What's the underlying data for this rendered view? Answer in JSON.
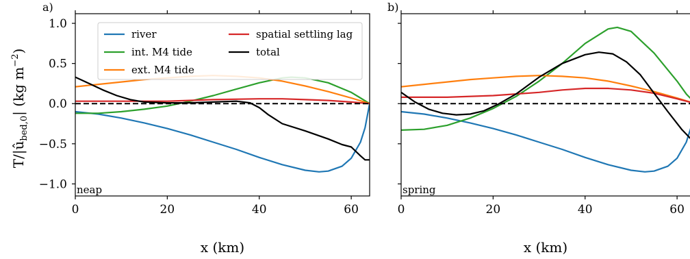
{
  "figure": {
    "ylabel": "T/|û",
    "ylabel_sub": "bed,0",
    "ylabel_unit": "| (kg m",
    "ylabel_sup": "−2",
    "ylabel_close": ")"
  },
  "legend": [
    {
      "label": "river",
      "color": "#1f77b4"
    },
    {
      "label": "int. M4 tide",
      "color": "#2ca02c"
    },
    {
      "label": "ext. M4 tide",
      "color": "#ff7f0e"
    },
    {
      "label": "spatial settling lag",
      "color": "#d62728"
    },
    {
      "label": "total",
      "color": "#000000"
    }
  ],
  "chart_data": [
    {
      "type": "line",
      "panel_label": "a)",
      "corner_label": "neap",
      "xlabel": "x (km)",
      "xlim": [
        0,
        64
      ],
      "ylim": [
        -1.15,
        1.12
      ],
      "xticks": [
        "0",
        "20",
        "40",
        "60"
      ],
      "yticks": [
        "1.0",
        "0.5",
        "0.0",
        "−0.5",
        "−1.0"
      ],
      "series": [
        {
          "name": "river",
          "color": "#1f77b4",
          "x": [
            0,
            5,
            10,
            15,
            20,
            25,
            30,
            35,
            40,
            45,
            50,
            53,
            55,
            58,
            60,
            62,
            63,
            64
          ],
          "y": [
            -0.1,
            -0.13,
            -0.18,
            -0.24,
            -0.31,
            -0.39,
            -0.48,
            -0.57,
            -0.67,
            -0.76,
            -0.83,
            -0.85,
            -0.84,
            -0.78,
            -0.68,
            -0.48,
            -0.3,
            0.0
          ]
        },
        {
          "name": "int. M4 tide",
          "color": "#2ca02c",
          "x": [
            0,
            5,
            10,
            15,
            20,
            25,
            30,
            35,
            40,
            45,
            47,
            50,
            55,
            60,
            62,
            64
          ],
          "y": [
            -0.12,
            -0.12,
            -0.1,
            -0.07,
            -0.03,
            0.03,
            0.1,
            0.18,
            0.26,
            0.32,
            0.33,
            0.32,
            0.26,
            0.14,
            0.07,
            0.0
          ]
        },
        {
          "name": "ext. M4 tide",
          "color": "#ff7f0e",
          "x": [
            0,
            5,
            10,
            15,
            20,
            25,
            30,
            35,
            40,
            45,
            50,
            55,
            60,
            64
          ],
          "y": [
            0.21,
            0.24,
            0.27,
            0.3,
            0.32,
            0.34,
            0.35,
            0.34,
            0.32,
            0.28,
            0.22,
            0.15,
            0.07,
            0.0
          ]
        },
        {
          "name": "spatial settling lag",
          "color": "#d62728",
          "x": [
            0,
            10,
            20,
            30,
            40,
            45,
            50,
            55,
            60,
            64
          ],
          "y": [
            0.03,
            0.03,
            0.03,
            0.05,
            0.06,
            0.06,
            0.05,
            0.04,
            0.02,
            0.0
          ]
        },
        {
          "name": "total",
          "color": "#000000",
          "x": [
            0,
            3,
            6,
            9,
            12,
            15,
            20,
            25,
            30,
            35,
            38,
            40,
            42,
            45,
            50,
            55,
            58,
            60,
            62,
            63,
            64
          ],
          "y": [
            0.33,
            0.25,
            0.17,
            0.1,
            0.05,
            0.02,
            0.01,
            0.01,
            0.02,
            0.03,
            0.01,
            -0.05,
            -0.14,
            -0.25,
            -0.34,
            -0.44,
            -0.51,
            -0.54,
            -0.65,
            -0.7,
            -0.7
          ]
        },
        {
          "name": "zero line",
          "color": "#000000",
          "dashed": true,
          "x": [
            0,
            64
          ],
          "y": [
            0,
            0
          ]
        }
      ]
    },
    {
      "type": "line",
      "panel_label": "b)",
      "corner_label": "spring",
      "xlabel": "x (km)",
      "xlim": [
        0,
        64
      ],
      "ylim": [
        -1.15,
        1.12
      ],
      "xticks": [
        "0",
        "20",
        "40",
        "60"
      ],
      "yticks": [],
      "series": [
        {
          "name": "river",
          "color": "#1f77b4",
          "x": [
            0,
            5,
            10,
            15,
            20,
            25,
            30,
            35,
            40,
            45,
            50,
            53,
            55,
            58,
            60,
            62,
            63,
            64
          ],
          "y": [
            -0.1,
            -0.13,
            -0.18,
            -0.24,
            -0.31,
            -0.39,
            -0.48,
            -0.57,
            -0.67,
            -0.76,
            -0.83,
            -0.85,
            -0.84,
            -0.78,
            -0.68,
            -0.48,
            -0.3,
            0.0
          ]
        },
        {
          "name": "int. M4 tide",
          "color": "#2ca02c",
          "x": [
            0,
            5,
            10,
            15,
            20,
            25,
            30,
            35,
            40,
            45,
            47,
            50,
            55,
            60,
            62,
            64
          ],
          "y": [
            -0.33,
            -0.32,
            -0.27,
            -0.18,
            -0.06,
            0.09,
            0.28,
            0.5,
            0.75,
            0.93,
            0.95,
            0.9,
            0.63,
            0.28,
            0.12,
            0.0
          ]
        },
        {
          "name": "ext. M4 tide",
          "color": "#ff7f0e",
          "x": [
            0,
            5,
            10,
            15,
            20,
            25,
            30,
            35,
            40,
            45,
            50,
            55,
            60,
            64
          ],
          "y": [
            0.21,
            0.24,
            0.27,
            0.3,
            0.32,
            0.34,
            0.35,
            0.34,
            0.32,
            0.28,
            0.22,
            0.15,
            0.07,
            0.0
          ]
        },
        {
          "name": "spatial settling lag",
          "color": "#d62728",
          "x": [
            0,
            10,
            20,
            30,
            35,
            40,
            45,
            50,
            55,
            60,
            64
          ],
          "y": [
            0.08,
            0.08,
            0.1,
            0.14,
            0.17,
            0.19,
            0.19,
            0.17,
            0.13,
            0.06,
            0.0
          ]
        },
        {
          "name": "total",
          "color": "#000000",
          "x": [
            0,
            3,
            6,
            9,
            12,
            15,
            18,
            21,
            25,
            30,
            35,
            40,
            43,
            46,
            49,
            52,
            55,
            58,
            61,
            64
          ],
          "y": [
            0.14,
            0.02,
            -0.07,
            -0.12,
            -0.14,
            -0.13,
            -0.09,
            -0.01,
            0.12,
            0.33,
            0.5,
            0.61,
            0.64,
            0.62,
            0.52,
            0.36,
            0.13,
            -0.1,
            -0.32,
            -0.5
          ]
        },
        {
          "name": "zero line",
          "color": "#000000",
          "dashed": true,
          "x": [
            0,
            64
          ],
          "y": [
            0,
            0
          ]
        }
      ]
    }
  ]
}
